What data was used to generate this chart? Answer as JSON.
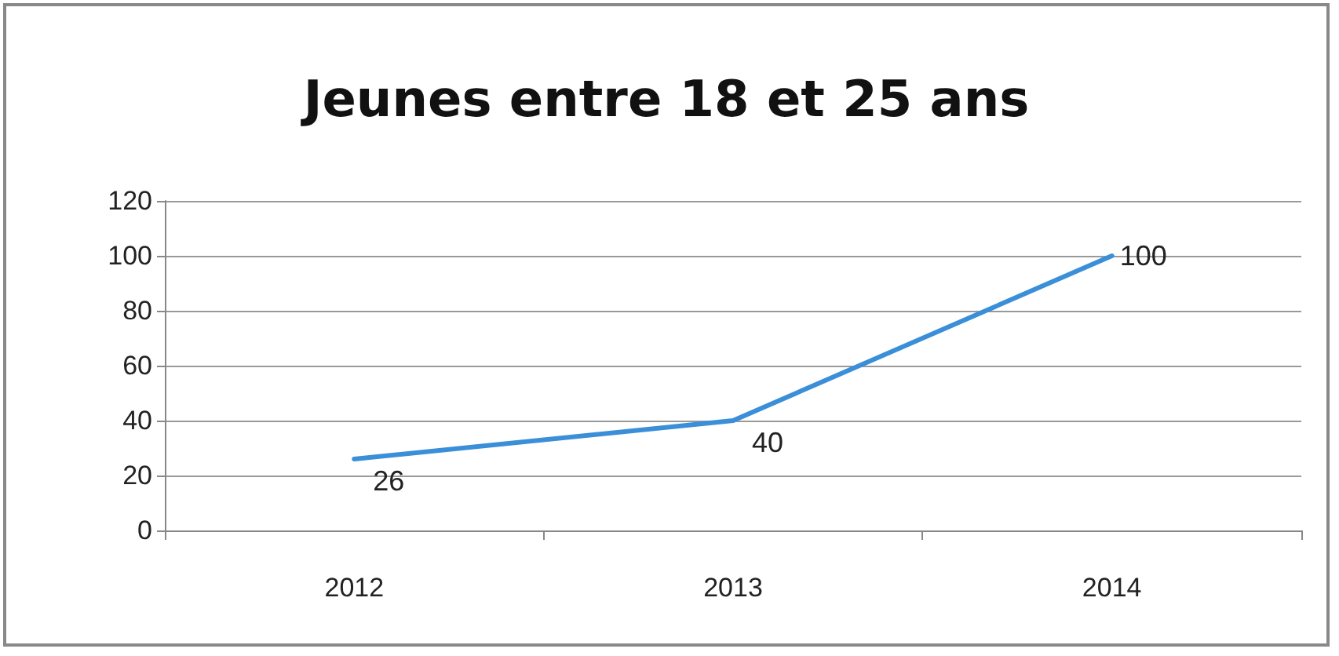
{
  "chart_data": {
    "type": "line",
    "title": "Jeunes entre 18 et 25 ans",
    "categories": [
      "2012",
      "2013",
      "2014"
    ],
    "series": [
      {
        "color": "#3a8fd8",
        "values": [
          26,
          40,
          100
        ]
      }
    ],
    "ylim": [
      0,
      120
    ],
    "yticks": [
      0,
      20,
      40,
      60,
      80,
      100,
      120
    ],
    "grid": "y",
    "marker": "none",
    "data_labels": true
  }
}
